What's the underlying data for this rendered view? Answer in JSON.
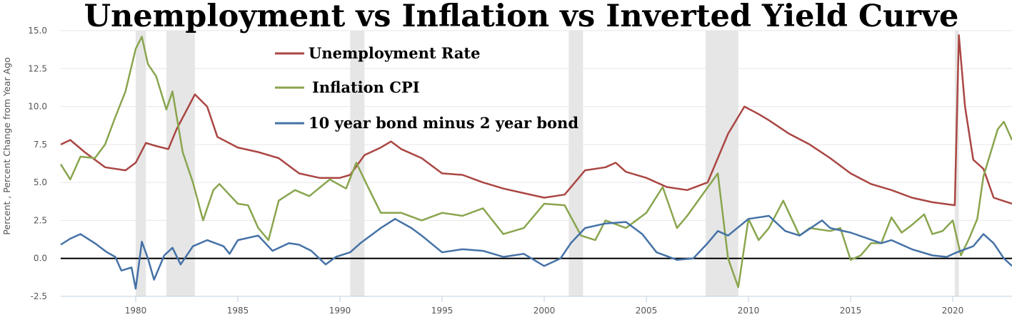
{
  "chart_data": {
    "type": "line",
    "title": "Unemployment vs Inflation vs Inverted Yield Curve",
    "xlabel": "",
    "ylabel": "Percent , Percent Change from Year Ago",
    "xlim": [
      1976.33,
      2022.9
    ],
    "ylim": [
      -2.5,
      15.0
    ],
    "yticks": [
      -2.5,
      0.0,
      2.5,
      5.0,
      7.5,
      10.0,
      12.5,
      15.0
    ],
    "ytick_labels": [
      "-2.5",
      "0.0",
      "2.5",
      "5.0",
      "7.5",
      "10.0",
      "12.5",
      "15.0"
    ],
    "xticks": [
      1980,
      1985,
      1990,
      1995,
      2000,
      2005,
      2010,
      2015,
      2020
    ],
    "xtick_labels": [
      "1980",
      "1985",
      "1990",
      "1995",
      "2000",
      "2005",
      "2010",
      "2015",
      "2020"
    ],
    "grid": true,
    "zero_line": true,
    "legend_position": "top-center",
    "recessions": [
      [
        1980.0,
        1980.5
      ],
      [
        1981.5,
        1982.9
      ],
      [
        1990.5,
        1991.2
      ],
      [
        2001.2,
        2001.9
      ],
      [
        2007.9,
        2009.5
      ],
      [
        2020.1,
        2020.3
      ]
    ],
    "series": [
      {
        "name": "Unemployment Rate",
        "color": "#aa4643",
        "x": [
          1976.33,
          1976.8,
          1977.5,
          1978.5,
          1979.5,
          1980.0,
          1980.5,
          1981.0,
          1981.6,
          1982.0,
          1982.9,
          1983.5,
          1984.0,
          1985,
          1986,
          1987,
          1988,
          1989,
          1990,
          1990.5,
          1991.2,
          1992,
          1992.5,
          1993,
          1994,
          1995,
          1996,
          1997,
          1998,
          1999,
          2000,
          2001,
          2002,
          2003,
          2003.5,
          2004,
          2005,
          2006,
          2007,
          2008,
          2009,
          2009.8,
          2010.5,
          2011,
          2012,
          2013,
          2014,
          2015,
          2016,
          2017,
          2018,
          2019,
          2020.1,
          2020.3,
          2020.6,
          2021,
          2021.5,
          2022,
          2022.9
        ],
        "y": [
          7.5,
          7.8,
          7.0,
          6.0,
          5.8,
          6.3,
          7.6,
          7.4,
          7.2,
          8.5,
          10.8,
          10.0,
          8.0,
          7.3,
          7.0,
          6.6,
          5.6,
          5.3,
          5.3,
          5.5,
          6.8,
          7.3,
          7.7,
          7.2,
          6.6,
          5.6,
          5.5,
          5.0,
          4.6,
          4.3,
          4.0,
          4.2,
          5.8,
          6.0,
          6.3,
          5.7,
          5.3,
          4.7,
          4.5,
          5.0,
          8.2,
          10.0,
          9.5,
          9.1,
          8.2,
          7.5,
          6.6,
          5.6,
          4.9,
          4.5,
          4.0,
          3.7,
          3.5,
          14.7,
          10.0,
          6.5,
          5.9,
          4.0,
          3.6
        ]
      },
      {
        "name": "Inflation CPI",
        "color": "#89a54e",
        "x": [
          1976.33,
          1976.8,
          1977.3,
          1978,
          1978.5,
          1979,
          1979.5,
          1980.0,
          1980.3,
          1980.6,
          1981,
          1981.5,
          1981.8,
          1982.3,
          1982.8,
          1983.3,
          1983.8,
          1984.1,
          1985,
          1985.5,
          1986,
          1986.5,
          1987,
          1987.8,
          1988.5,
          1989.5,
          1990.3,
          1990.8,
          1991.3,
          1992,
          1993,
          1994,
          1995,
          1996,
          1997,
          1998,
          1999,
          2000,
          2001,
          2001.8,
          2002.5,
          2003,
          2004,
          2005,
          2005.8,
          2006.5,
          2007,
          2007.8,
          2008.5,
          2009,
          2009.5,
          2010,
          2010.5,
          2011,
          2011.7,
          2012.5,
          2013,
          2014,
          2014.5,
          2015,
          2015.5,
          2016,
          2016.5,
          2017,
          2017.5,
          2018,
          2018.6,
          2019,
          2019.5,
          2020.0,
          2020.4,
          2020.8,
          2021.2,
          2021.5,
          2022.2,
          2022.5,
          2022.9
        ],
        "y": [
          6.2,
          5.2,
          6.7,
          6.6,
          7.5,
          9.3,
          11.0,
          13.8,
          14.6,
          12.8,
          12.0,
          9.8,
          11.0,
          7.0,
          5.0,
          2.5,
          4.5,
          4.9,
          3.6,
          3.5,
          2.0,
          1.2,
          3.8,
          4.5,
          4.1,
          5.2,
          4.6,
          6.3,
          4.9,
          3.0,
          3.0,
          2.5,
          3.0,
          2.8,
          3.3,
          1.6,
          2.0,
          3.6,
          3.5,
          1.5,
          1.2,
          2.5,
          2.0,
          3.0,
          4.7,
          2.0,
          2.8,
          4.3,
          5.6,
          0.0,
          -1.9,
          2.6,
          1.2,
          2.0,
          3.8,
          1.5,
          2.0,
          1.8,
          2.0,
          -0.1,
          0.2,
          1.0,
          1.0,
          2.7,
          1.7,
          2.2,
          2.9,
          1.6,
          1.8,
          2.5,
          0.2,
          1.3,
          2.6,
          5.4,
          8.5,
          9.0,
          7.8
        ]
      },
      {
        "name": "10 year bond minus 2 year bond",
        "color": "#4572a7",
        "x": [
          1976.33,
          1976.8,
          1977.3,
          1978,
          1978.6,
          1979,
          1979.3,
          1979.8,
          1980.0,
          1980.3,
          1980.6,
          1980.9,
          1981.4,
          1981.8,
          1982.2,
          1982.8,
          1983.5,
          1984.3,
          1984.6,
          1985,
          1986,
          1986.7,
          1987.5,
          1988,
          1988.6,
          1989.3,
          1989.8,
          1990.5,
          1991,
          1992,
          1992.7,
          1993.5,
          1994,
          1995,
          1996,
          1997,
          1998,
          1999,
          2000,
          2000.8,
          2001.3,
          2002,
          2003,
          2004,
          2004.8,
          2005.5,
          2006.5,
          2007.3,
          2008,
          2008.5,
          2009,
          2010,
          2011,
          2011.8,
          2012.5,
          2013.6,
          2014,
          2015,
          2016.5,
          2017,
          2018,
          2019,
          2019.7,
          2020.2,
          2021,
          2021.5,
          2022,
          2022.5,
          2022.9
        ],
        "y": [
          0.9,
          1.3,
          1.6,
          1.0,
          0.4,
          0.1,
          -0.8,
          -0.6,
          -2.0,
          1.1,
          0.0,
          -1.4,
          0.2,
          0.7,
          -0.4,
          0.8,
          1.2,
          0.8,
          0.3,
          1.2,
          1.5,
          0.5,
          1.0,
          0.9,
          0.5,
          -0.4,
          0.1,
          0.4,
          1.0,
          2.0,
          2.6,
          2.0,
          1.5,
          0.4,
          0.6,
          0.5,
          0.1,
          0.3,
          -0.5,
          0.0,
          1.0,
          2.0,
          2.3,
          2.4,
          1.6,
          0.4,
          -0.1,
          0.0,
          1.0,
          1.8,
          1.5,
          2.6,
          2.8,
          1.8,
          1.5,
          2.5,
          2.0,
          1.7,
          1.0,
          1.2,
          0.6,
          0.2,
          0.1,
          0.4,
          0.8,
          1.6,
          1.0,
          0.0,
          -0.5
        ]
      }
    ]
  }
}
